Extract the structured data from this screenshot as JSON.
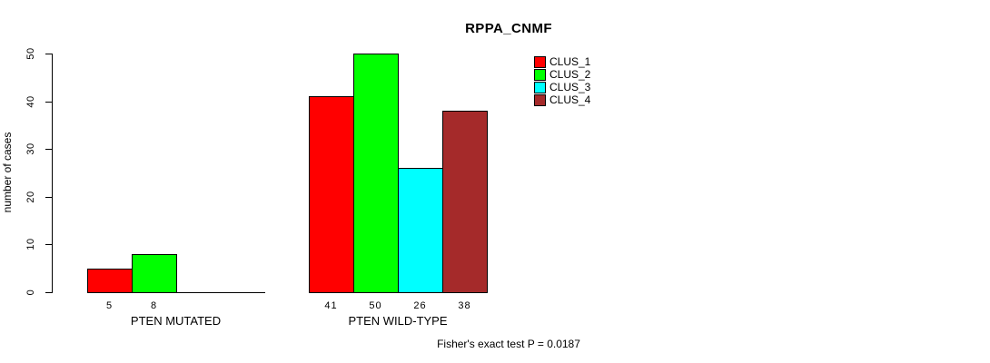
{
  "chart_data": {
    "type": "bar",
    "title": "RPPA_CNMF",
    "ylabel": "number of cases",
    "xlabel": "",
    "ylim": [
      0,
      50
    ],
    "yticks": [
      0,
      10,
      20,
      30,
      40,
      50
    ],
    "grid": false,
    "legend_position": "top-right",
    "legend": [
      {
        "label": "CLUS_1",
        "color": "#FF0000"
      },
      {
        "label": "CLUS_2",
        "color": "#00FF00"
      },
      {
        "label": "CLUS_3",
        "color": "#00FFFF"
      },
      {
        "label": "CLUS_4",
        "color": "#A52A2A"
      }
    ],
    "groups": [
      {
        "label": "PTEN MUTATED",
        "values": [
          5,
          8,
          0,
          0
        ]
      },
      {
        "label": "PTEN WILD-TYPE",
        "values": [
          41,
          50,
          26,
          38
        ]
      }
    ],
    "annotation": "Fisher's exact test P = 0.0187",
    "axis_color": "#000000",
    "background_color": "#FFFFFF"
  }
}
